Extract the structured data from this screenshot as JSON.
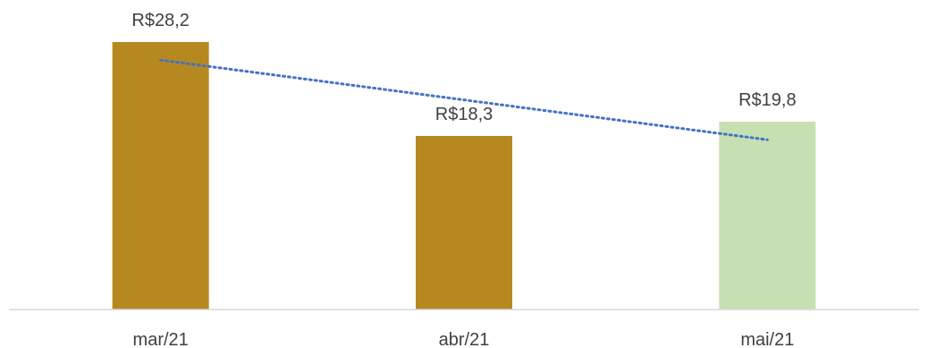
{
  "chart_data": {
    "type": "bar",
    "categories": [
      "mar/21",
      "abr/21",
      "mai/21"
    ],
    "values": [
      28.2,
      18.3,
      19.8
    ],
    "data_labels": [
      "R$28,2",
      "R$18,3",
      "R$19,8"
    ],
    "bar_colors": [
      "#B5891F",
      "#B5891F",
      "#C6E0B4"
    ],
    "trendline": {
      "type": "linear",
      "style": "dotted",
      "color": "#4472C4"
    },
    "ylim": [
      0,
      30
    ],
    "grid": false,
    "legend": "none"
  }
}
